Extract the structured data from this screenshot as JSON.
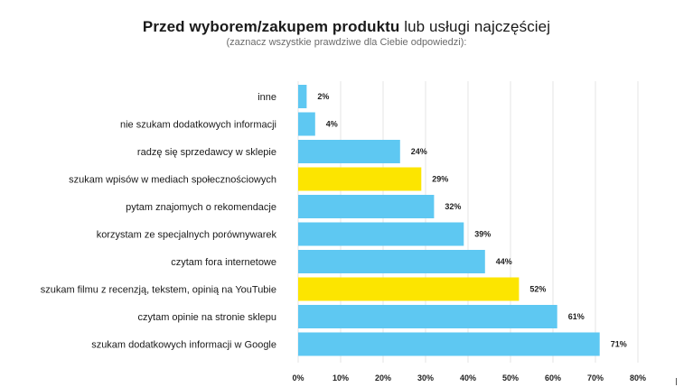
{
  "chart_data": {
    "type": "bar",
    "orientation": "horizontal",
    "title_bold": "Przed wyborem/zakupem produktu",
    "title_rest": " lub usługi najczęściej",
    "subtitle": "(zaznacz wszystkie prawdziwe dla Ciebie odpowiedzi):",
    "categories": [
      "inne",
      "nie szukam dodatkowych informacji",
      "radzę się sprzedawcy w sklepie",
      "szukam wpisów w mediach społecznościowych",
      "pytam znajomych o rekomendacje",
      "korzystam ze specjalnych porównywarek",
      "czytam fora internetowe",
      "szukam filmu z recenzją, tekstem, opinią na YouTubie",
      "czytam opinie na stronie sklepu",
      "szukam dodatkowych informacji w Google"
    ],
    "values": [
      2,
      4,
      24,
      29,
      32,
      39,
      44,
      52,
      61,
      71
    ],
    "highlighted": [
      false,
      false,
      false,
      true,
      false,
      false,
      false,
      true,
      false,
      false
    ],
    "value_suffix": "%",
    "xlim": [
      0,
      80
    ],
    "xticks": [
      0,
      10,
      20,
      30,
      40,
      50,
      60,
      70,
      80
    ],
    "xlabel": "",
    "ylabel": "",
    "grid": true,
    "colors": {
      "bar": "#5ec8f2",
      "highlight": "#fce500",
      "grid": "#e6e6e6"
    }
  }
}
